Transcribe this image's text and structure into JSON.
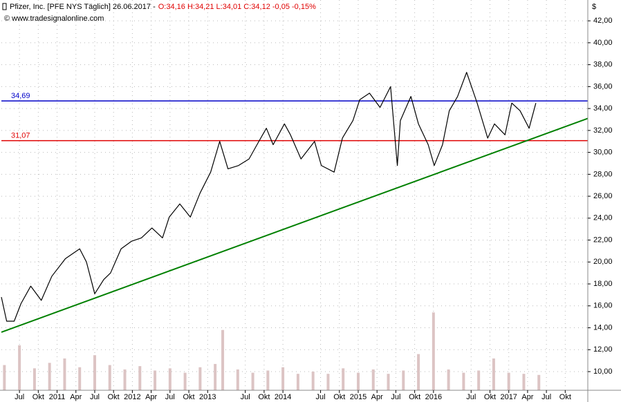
{
  "chart_data": {
    "type": "line",
    "title": "Pfizer, Inc. [PFE NYS  Täglich] 26.06.2017 -",
    "quote": "O:34,16 H:34,21 L:34,01 C:34,12 -0,05 -0,15%",
    "source": "© www.tradesignalonline.com",
    "y_unit": "$",
    "series": [
      {
        "color": "#000000",
        "x": [
          2010.26,
          2010.33,
          2010.43,
          2010.52,
          2010.65,
          2010.79,
          2010.93,
          2011.11,
          2011.3,
          2011.39,
          2011.5,
          2011.62,
          2011.71,
          2011.85,
          2011.99,
          2012.12,
          2012.26,
          2012.4,
          2012.49,
          2012.63,
          2012.77,
          2012.9,
          2013.04,
          2013.16,
          2013.27,
          2013.41,
          2013.55,
          2013.68,
          2013.78,
          2013.87,
          2014.02,
          2014.1,
          2014.24,
          2014.42,
          2014.51,
          2014.68,
          2014.79,
          2014.93,
          2015.02,
          2015.15,
          2015.29,
          2015.43,
          2015.52,
          2015.56,
          2015.7,
          2015.8,
          2015.93,
          2016.01,
          2016.12,
          2016.21,
          2016.32,
          2016.44,
          2016.58,
          2016.72,
          2016.81,
          2016.95,
          2017.04,
          2017.15,
          2017.27,
          2017.36
        ],
        "values": [
          16.8,
          14.6,
          14.6,
          16.2,
          17.8,
          16.5,
          18.7,
          20.3,
          21.2,
          20.0,
          17.1,
          18.4,
          19.0,
          21.2,
          21.9,
          22.2,
          23.1,
          22.2,
          24.1,
          25.3,
          24.1,
          26.3,
          28.2,
          31.0,
          28.5,
          28.8,
          29.4,
          31.0,
          32.2,
          30.7,
          32.6,
          31.6,
          29.4,
          31.0,
          28.8,
          28.2,
          31.3,
          32.9,
          34.8,
          35.4,
          34.1,
          36.0,
          28.8,
          32.9,
          35.1,
          32.6,
          30.7,
          28.8,
          30.7,
          33.8,
          35.1,
          37.3,
          34.5,
          31.3,
          32.6,
          31.6,
          34.5,
          33.8,
          32.2,
          34.5
        ]
      }
    ],
    "volume": {
      "color": "#dcc4c4",
      "x": [
        2010.3,
        2010.5,
        2010.7,
        2010.9,
        2011.1,
        2011.3,
        2011.5,
        2011.7,
        2011.9,
        2012.1,
        2012.3,
        2012.5,
        2012.7,
        2012.9,
        2013.1,
        2013.2,
        2013.4,
        2013.6,
        2013.8,
        2014.0,
        2014.2,
        2014.4,
        2014.6,
        2014.8,
        2015.0,
        2015.2,
        2015.4,
        2015.6,
        2015.8,
        2016.0,
        2016.2,
        2016.4,
        2016.6,
        2016.8,
        2017.0,
        2017.2,
        2017.4
      ],
      "values": [
        10.6,
        12.4,
        10.3,
        10.8,
        11.2,
        10.4,
        11.5,
        10.6,
        10.2,
        10.5,
        10.1,
        10.3,
        9.9,
        10.4,
        10.7,
        13.8,
        10.2,
        9.9,
        10.1,
        10.4,
        9.8,
        10.0,
        9.8,
        10.3,
        9.9,
        10.2,
        9.8,
        10.1,
        11.6,
        15.4,
        10.2,
        9.9,
        10.1,
        11.2,
        9.9,
        9.8,
        9.7
      ]
    },
    "lines": [
      {
        "value": 34.69,
        "label": "34,69",
        "color": "#0000c8"
      },
      {
        "value": 31.07,
        "label": "31,07",
        "color": "#e00000"
      }
    ],
    "trendline": {
      "color": "#008000",
      "x": [
        2010.26,
        2018.05
      ],
      "values": [
        13.6,
        33.1
      ]
    },
    "xlim": [
      2010.26,
      2018.05
    ],
    "ylim": [
      8.3,
      43.9
    ],
    "xticks": [
      {
        "value": 2010.5,
        "label": "Jul"
      },
      {
        "value": 2010.75,
        "label": "Okt"
      },
      {
        "value": 2011,
        "label": "2011"
      },
      {
        "value": 2011.25,
        "label": "Apr"
      },
      {
        "value": 2011.5,
        "label": "Jul"
      },
      {
        "value": 2011.75,
        "label": "Okt"
      },
      {
        "value": 2012,
        "label": "2012"
      },
      {
        "value": 2012.25,
        "label": "Apr"
      },
      {
        "value": 2012.5,
        "label": "Jul"
      },
      {
        "value": 2012.75,
        "label": "Okt"
      },
      {
        "value": 2013,
        "label": "2013"
      },
      {
        "value": 2013.5,
        "label": "Jul"
      },
      {
        "value": 2013.75,
        "label": "Okt"
      },
      {
        "value": 2014,
        "label": "2014"
      },
      {
        "value": 2014.5,
        "label": "Jul"
      },
      {
        "value": 2014.75,
        "label": "Okt"
      },
      {
        "value": 2015,
        "label": "2015"
      },
      {
        "value": 2015.25,
        "label": "Apr"
      },
      {
        "value": 2015.5,
        "label": "Jul"
      },
      {
        "value": 2015.75,
        "label": "Okt"
      },
      {
        "value": 2016,
        "label": "2016"
      },
      {
        "value": 2016.5,
        "label": "Jul"
      },
      {
        "value": 2016.75,
        "label": "Okt"
      },
      {
        "value": 2017,
        "label": "2017"
      },
      {
        "value": 2017.25,
        "label": "Apr"
      },
      {
        "value": 2017.5,
        "label": "Jul"
      },
      {
        "value": 2017.75,
        "label": "Okt"
      }
    ],
    "yticks": [
      {
        "value": 10,
        "label": "10,00"
      },
      {
        "value": 12,
        "label": "12,00"
      },
      {
        "value": 14,
        "label": "14,00"
      },
      {
        "value": 16,
        "label": "16,00"
      },
      {
        "value": 18,
        "label": "18,00"
      },
      {
        "value": 20,
        "label": "20,00"
      },
      {
        "value": 22,
        "label": "22,00"
      },
      {
        "value": 24,
        "label": "24,00"
      },
      {
        "value": 26,
        "label": "26,00"
      },
      {
        "value": 28,
        "label": "28,00"
      },
      {
        "value": 30,
        "label": "30,00"
      },
      {
        "value": 32,
        "label": "32,00"
      },
      {
        "value": 34,
        "label": "34,00"
      },
      {
        "value": 36,
        "label": "36,00"
      },
      {
        "value": 38,
        "label": "38,00"
      },
      {
        "value": 40,
        "label": "40,00"
      },
      {
        "value": 42,
        "label": "42,00"
      }
    ],
    "grid": true
  }
}
